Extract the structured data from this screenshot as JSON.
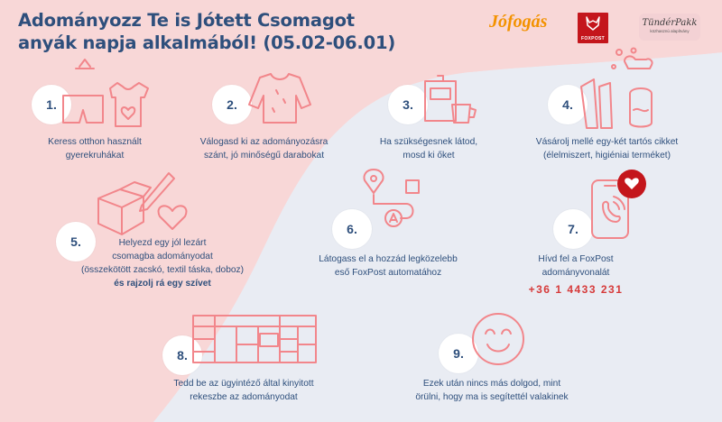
{
  "title_line1": "Adományozz Te is Jótett Csomagot",
  "title_line2": "anyák napja alkalmából! (05.02-06.01)",
  "logos": {
    "jofogas": "Jófogás",
    "foxpost": "FOXPOST",
    "tunderpakk": "TündérPakk",
    "tunderpakk_sub": "közhasznú alapítvány"
  },
  "steps": [
    {
      "num": "1.",
      "l1": "Keress otthon használt",
      "l2": "gyerekruhákat"
    },
    {
      "num": "2.",
      "l1": "Válogasd ki az adományozásra",
      "l2": "szánt, jó minőségű darabokat"
    },
    {
      "num": "3.",
      "l1": "Ha szükségesnek látod,",
      "l2": "mosd ki őket"
    },
    {
      "num": "4.",
      "l1": "Vásárolj mellé egy-két tartós cikket",
      "l2": "(élelmiszert, higiéniai terméket)"
    },
    {
      "num": "5.",
      "l1": "Helyezd egy jól lezárt",
      "l2": "csomagba adományodat",
      "l3": "(összekötött zacskó, textil táska, doboz)",
      "l4": "és rajzolj rá egy szívet"
    },
    {
      "num": "6.",
      "l1": "Látogass el a hozzád legközelebb",
      "l2": "eső FoxPost automatához"
    },
    {
      "num": "7.",
      "l1": "Hívd fel a FoxPost",
      "l2": "adományvonalát",
      "phone": "+36 1 4433 231"
    },
    {
      "num": "8.",
      "l1": "Tedd be az ügyintéző által kinyitott",
      "l2": "rekeszbe az adományodat"
    },
    {
      "num": "9.",
      "l1": "Ezek után nincs más dolgod, mint",
      "l2": "örülni, hogy ma is segítettél valakinek"
    }
  ],
  "colors": {
    "title": "#2e4f7c",
    "icon": "#f2868b",
    "pink_bg": "#f8d7d7",
    "blue_bg": "#e9ecf3",
    "phone": "#d63a3a"
  }
}
